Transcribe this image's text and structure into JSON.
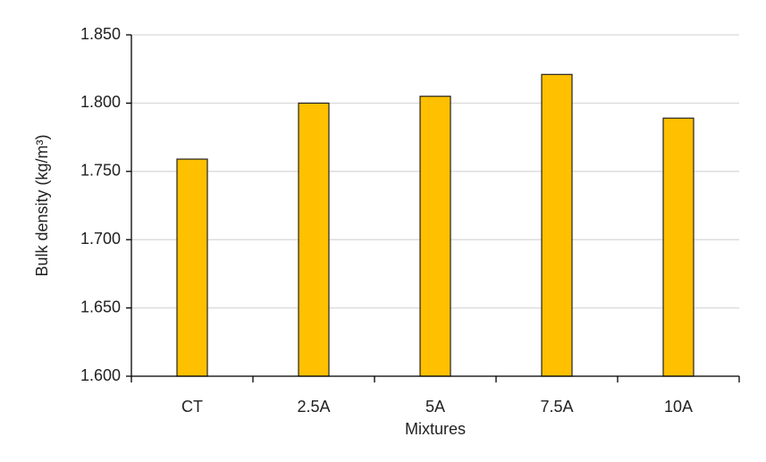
{
  "chart_data": {
    "type": "bar",
    "x_label": "Mixtures",
    "y_label": "Bulk density (kg/m³)",
    "categories": [
      "CT",
      "2.5A",
      "5A",
      "7.5A",
      "10A"
    ],
    "values": [
      1.759,
      1.8,
      1.805,
      1.821,
      1.789
    ],
    "color": "#ffc000",
    "ylim": [
      1.6,
      1.85
    ],
    "yticks": [
      {
        "value": 1.6,
        "label": "1.600"
      },
      {
        "value": 1.65,
        "label": "1.650"
      },
      {
        "value": 1.7,
        "label": "1.700"
      },
      {
        "value": 1.75,
        "label": "1.750"
      },
      {
        "value": 1.8,
        "label": "1.800"
      },
      {
        "value": 1.85,
        "label": "1.850"
      }
    ],
    "grid": true
  }
}
